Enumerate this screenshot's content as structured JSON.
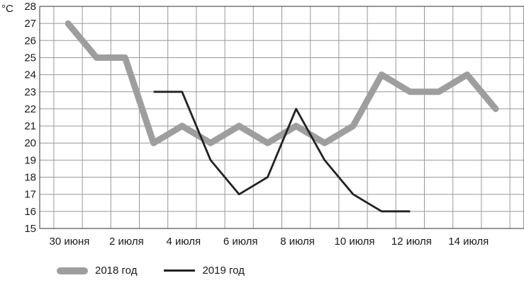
{
  "chart_data": {
    "type": "line",
    "unit_label": "°C",
    "categories": [
      "30 июня",
      "1 июля",
      "2 июля",
      "3 июля",
      "4 июля",
      "5 июля",
      "6 июля",
      "7 июля",
      "8 июля",
      "9 июля",
      "10 июля",
      "11 июля",
      "12 июля",
      "13 июля",
      "14 июля",
      "15 июля"
    ],
    "tick_labels": [
      "30 июня",
      "2 июля",
      "4 июля",
      "6 июля",
      "8 июля",
      "10 июля",
      "12 июля",
      "14 июля"
    ],
    "series": [
      {
        "name": "2018 год",
        "color": "#9e9e9e",
        "values": [
          27,
          25,
          25,
          20,
          21,
          20,
          21,
          20,
          21,
          20,
          21,
          24,
          23,
          23,
          24,
          22
        ]
      },
      {
        "name": "2019 год",
        "color": "#222222",
        "values": [
          null,
          null,
          null,
          23,
          23,
          19,
          17,
          18,
          22,
          19,
          17,
          16,
          16,
          null,
          null,
          null
        ]
      }
    ],
    "ylim": [
      15,
      28
    ],
    "yticks": [
      15,
      16,
      17,
      18,
      19,
      20,
      21,
      22,
      23,
      24,
      25,
      26,
      27,
      28
    ],
    "grid": true,
    "legend_position": "bottom"
  }
}
